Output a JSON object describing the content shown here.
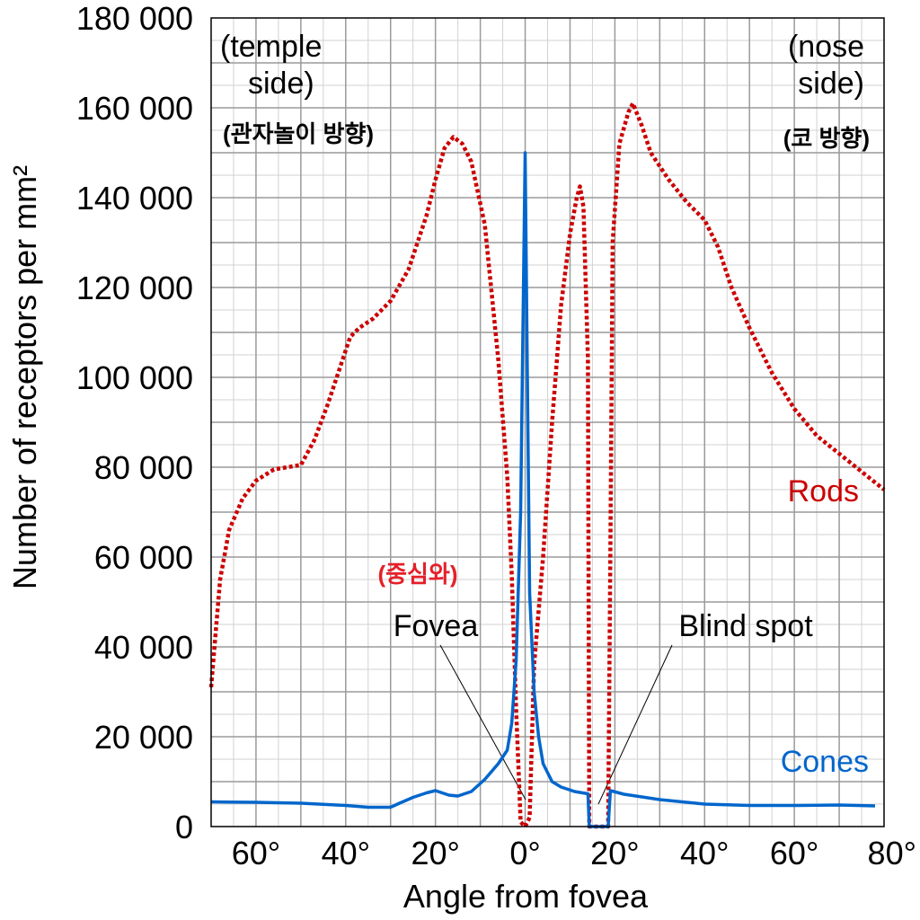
{
  "chart_data": {
    "type": "line",
    "ylabel": "Number of receptors per mm²",
    "xlabel": "Angle from fovea",
    "xlim": [
      -70,
      80
    ],
    "ylim": [
      0,
      180000
    ],
    "grid": true,
    "x_ticks": [
      -60,
      -40,
      -20,
      0,
      20,
      40,
      60,
      80
    ],
    "x_tick_labels": [
      "60°",
      "40°",
      "20°",
      "0°",
      "20°",
      "40°",
      "60°",
      "80°"
    ],
    "y_ticks": [
      0,
      20000,
      40000,
      60000,
      80000,
      100000,
      120000,
      140000,
      160000,
      180000
    ],
    "y_tick_labels": [
      "0",
      "20 000",
      "40 000",
      "60 000",
      "80 000",
      "100 000",
      "120 000",
      "140 000",
      "160 000",
      "180 000"
    ],
    "series": [
      {
        "name": "Rods",
        "color": "#cc0000",
        "style": "dotted",
        "points": [
          [
            -70,
            31000
          ],
          [
            -68,
            55000
          ],
          [
            -66,
            66000
          ],
          [
            -63,
            73000
          ],
          [
            -60,
            77000
          ],
          [
            -56,
            79500
          ],
          [
            -50,
            80500
          ],
          [
            -47,
            86000
          ],
          [
            -44,
            94000
          ],
          [
            -41,
            103000
          ],
          [
            -39,
            109000
          ],
          [
            -37,
            111000
          ],
          [
            -34,
            113000
          ],
          [
            -30,
            117000
          ],
          [
            -26,
            124000
          ],
          [
            -22,
            136000
          ],
          [
            -20,
            144000
          ],
          [
            -18,
            151000
          ],
          [
            -16,
            153500
          ],
          [
            -14,
            152000
          ],
          [
            -12,
            148000
          ],
          [
            -9,
            134000
          ],
          [
            -6,
            104000
          ],
          [
            -4,
            78000
          ],
          [
            -3,
            56000
          ],
          [
            -2,
            26000
          ],
          [
            -1,
            1000
          ],
          [
            0,
            0
          ],
          [
            1,
            2000
          ],
          [
            2,
            36000
          ],
          [
            4,
            60000
          ],
          [
            6,
            90000
          ],
          [
            8,
            116000
          ],
          [
            10,
            132000
          ],
          [
            11.5,
            140000
          ],
          [
            12.2,
            142500
          ],
          [
            13,
            138000
          ],
          [
            14,
            104000
          ],
          [
            14.3,
            0
          ],
          [
            18.5,
            0
          ],
          [
            19,
            62000
          ],
          [
            19.5,
            130000
          ],
          [
            21,
            152000
          ],
          [
            23,
            159000
          ],
          [
            24,
            161000
          ],
          [
            26,
            156000
          ],
          [
            28,
            150000
          ],
          [
            32,
            144000
          ],
          [
            36,
            139000
          ],
          [
            40,
            135000
          ],
          [
            43,
            129000
          ],
          [
            46,
            120000
          ],
          [
            50,
            111000
          ],
          [
            55,
            101000
          ],
          [
            60,
            93000
          ],
          [
            65,
            87000
          ],
          [
            70,
            83000
          ],
          [
            75,
            79000
          ],
          [
            80,
            75000
          ]
        ]
      },
      {
        "name": "Cones",
        "color": "#0066cc",
        "style": "solid",
        "points": [
          [
            -70,
            5500
          ],
          [
            -60,
            5400
          ],
          [
            -50,
            5200
          ],
          [
            -40,
            4700
          ],
          [
            -35,
            4300
          ],
          [
            -30,
            4300
          ],
          [
            -28,
            5200
          ],
          [
            -25,
            6500
          ],
          [
            -22,
            7500
          ],
          [
            -20,
            8000
          ],
          [
            -17,
            7000
          ],
          [
            -15,
            6800
          ],
          [
            -12,
            7800
          ],
          [
            -9,
            10500
          ],
          [
            -6,
            14000
          ],
          [
            -4,
            17000
          ],
          [
            -3,
            23000
          ],
          [
            -2,
            37000
          ],
          [
            -1,
            70000
          ],
          [
            -0.5,
            110000
          ],
          [
            0,
            150000
          ],
          [
            0.5,
            100000
          ],
          [
            1,
            52000
          ],
          [
            2,
            30000
          ],
          [
            3,
            20000
          ],
          [
            4,
            14000
          ],
          [
            6,
            10000
          ],
          [
            8,
            8800
          ],
          [
            11,
            7800
          ],
          [
            14,
            7300
          ],
          [
            14.3,
            0
          ],
          [
            18.5,
            0
          ],
          [
            19,
            8000
          ],
          [
            22,
            7200
          ],
          [
            30,
            6000
          ],
          [
            40,
            5000
          ],
          [
            50,
            4700
          ],
          [
            60,
            4700
          ],
          [
            70,
            4800
          ],
          [
            78,
            4600
          ]
        ]
      }
    ],
    "annotations": {
      "temple_line1": "(temple",
      "temple_line2": "side)",
      "temple_ko": "(관자놀이 방향)",
      "nose_line1": "(nose",
      "nose_line2": "side)",
      "nose_ko": "(코 방향)",
      "fovea_ko": "(중심와)",
      "fovea": "Fovea",
      "blind_spot": "Blind spot",
      "rods_label": "Rods",
      "cones_label": "Cones"
    }
  }
}
